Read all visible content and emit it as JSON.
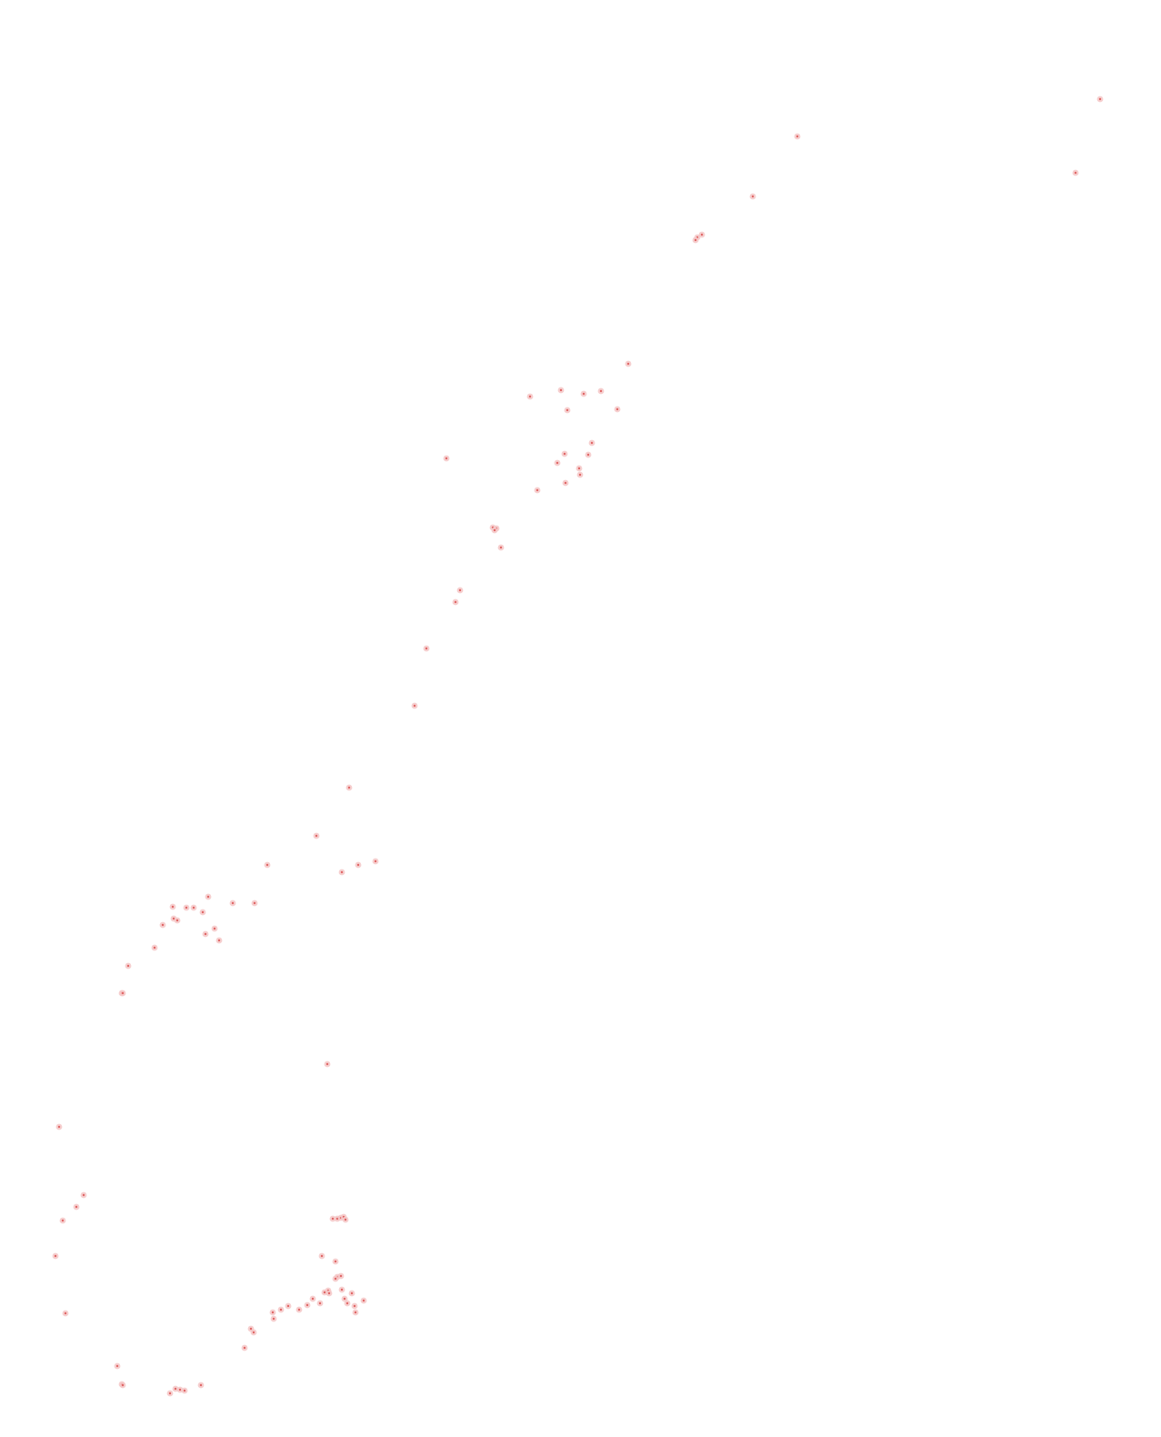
{
  "map": {
    "background_color": "#ffffff",
    "marker_color": "#e06666",
    "marker_halo_color": "#f4c7c7",
    "marker_count": 110
  }
}
